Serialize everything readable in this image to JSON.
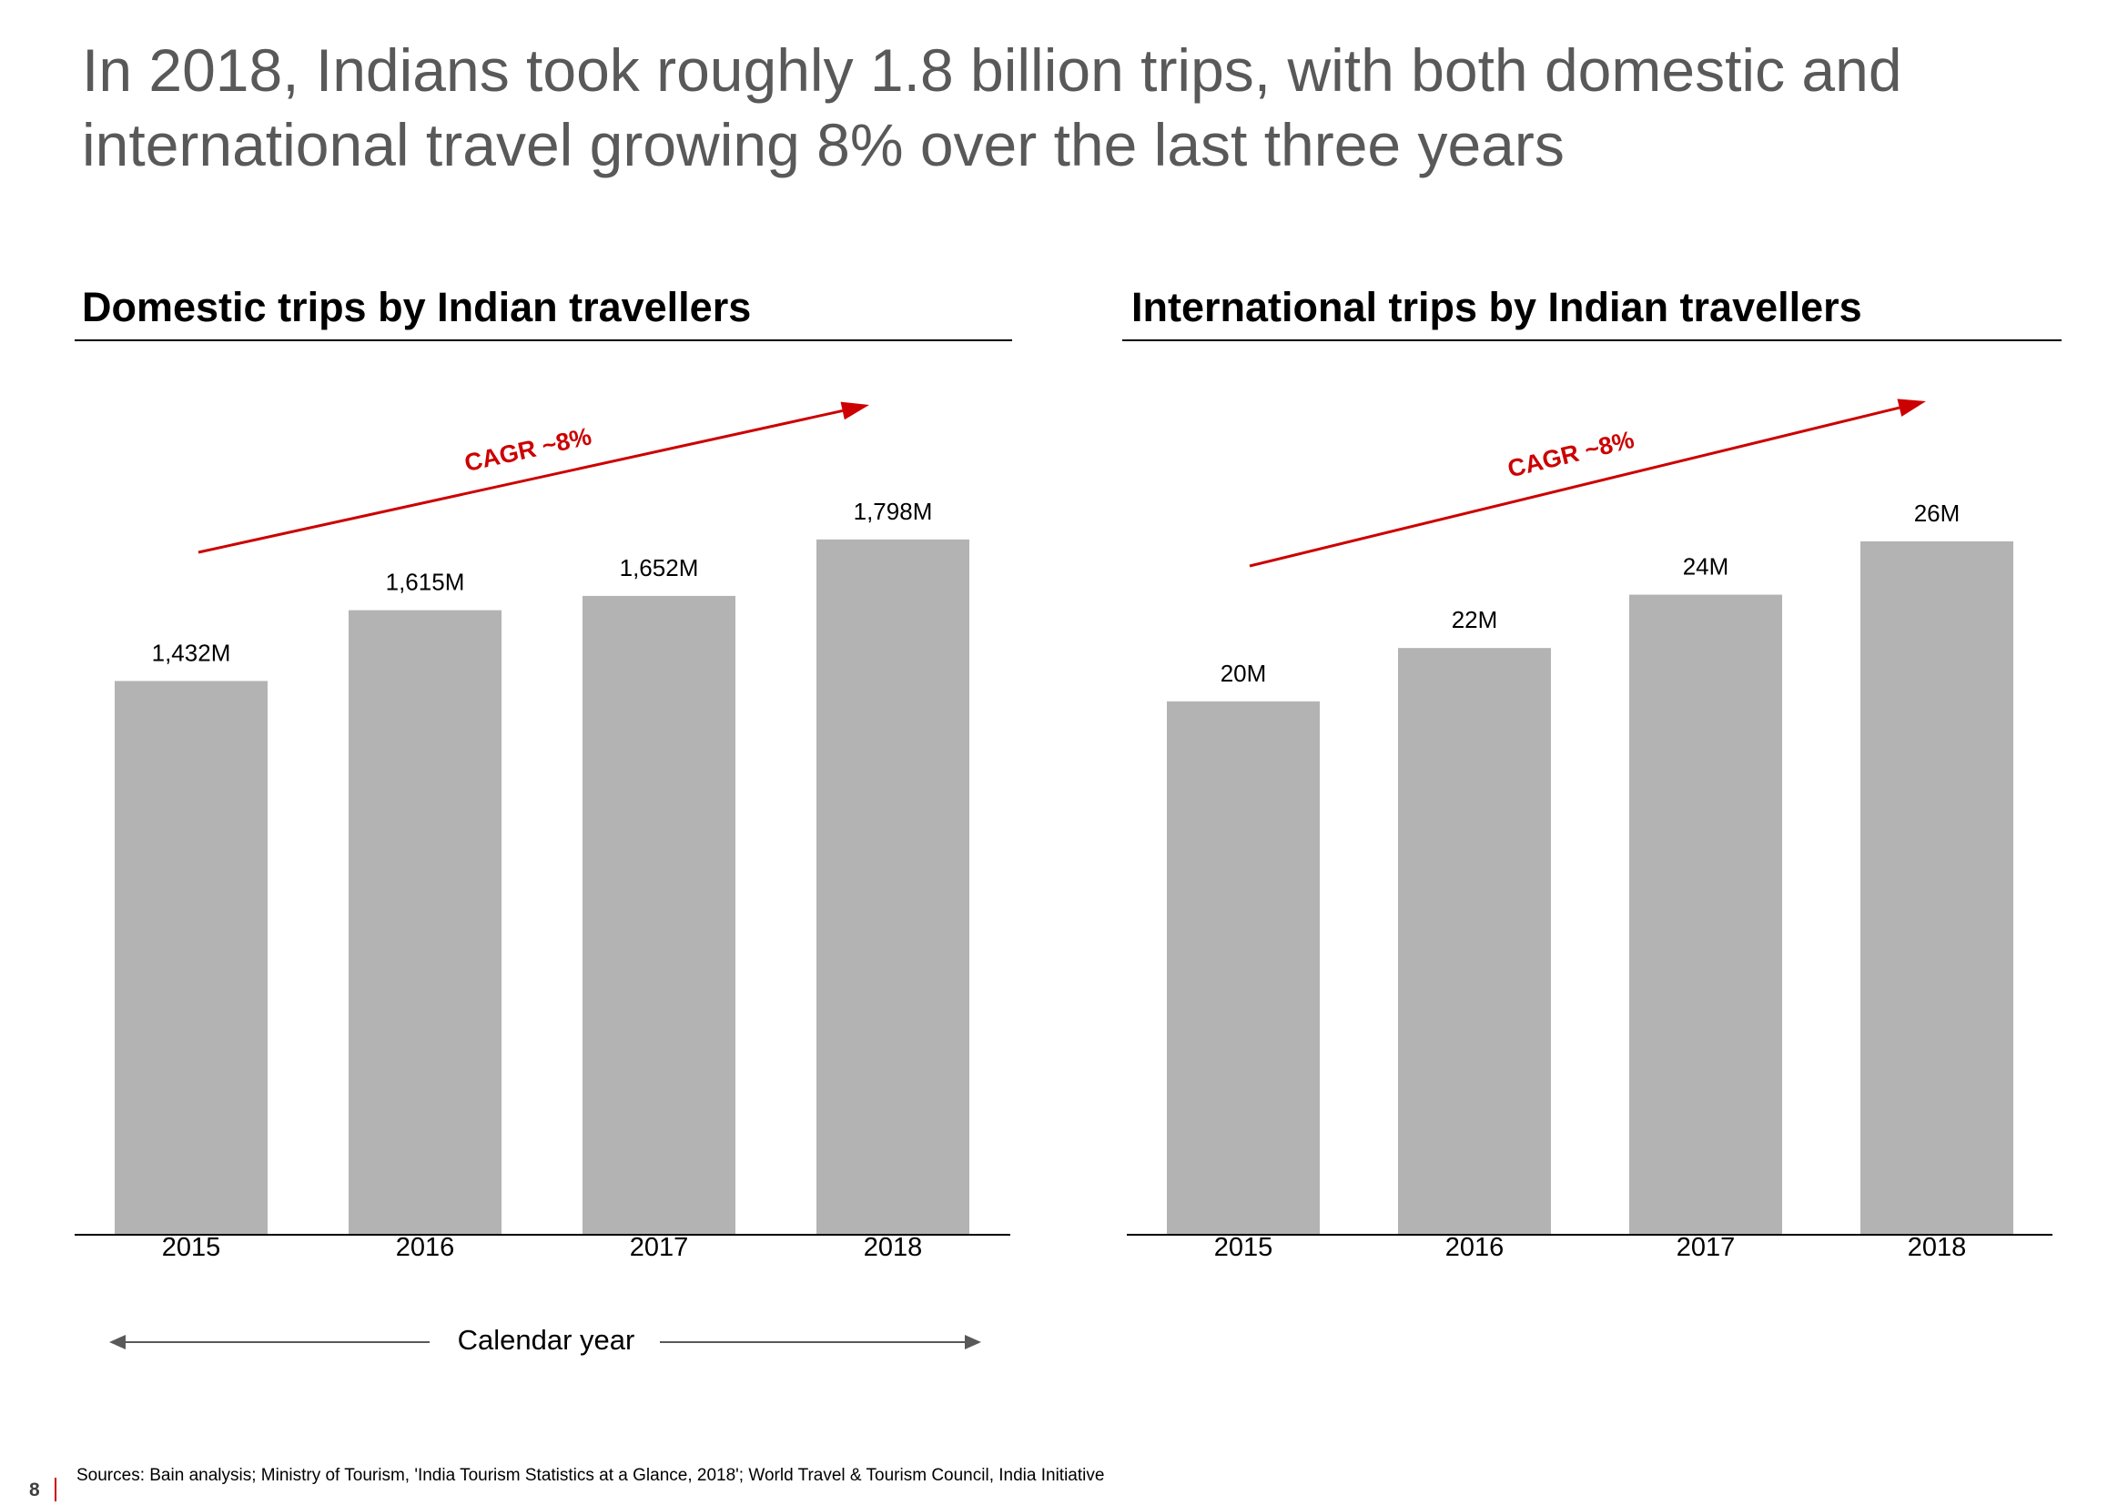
{
  "headline": {
    "line1": "In 2018, Indians took roughly 1.8 billion trips, with both domestic and",
    "line2": "international travel growing 8% over the last three years"
  },
  "colors": {
    "bar": "#b3b3b3",
    "cagr": "#cc0000",
    "axis": "#000000",
    "arrow": "#595959"
  },
  "chart_data": [
    {
      "type": "bar",
      "title": "Domestic trips by Indian travellers",
      "categories": [
        "2015",
        "2016",
        "2017",
        "2018"
      ],
      "values": [
        1432,
        1615,
        1652,
        1798
      ],
      "value_labels": [
        "1,432M",
        "1,615M",
        "1,652M",
        "1,798M"
      ],
      "ylim": [
        0,
        2000
      ],
      "annotation": "CAGR ~8%"
    },
    {
      "type": "bar",
      "title": "International trips by Indian travellers",
      "categories": [
        "2015",
        "2016",
        "2017",
        "2018"
      ],
      "values": [
        20,
        22,
        24,
        26
      ],
      "value_labels": [
        "20M",
        "22M",
        "24M",
        "26M"
      ],
      "ylim": [
        0,
        29
      ],
      "annotation": "CAGR ~8%"
    }
  ],
  "xaxis_caption": "Calendar year",
  "footer": {
    "source": "Sources: Bain analysis; Ministry of Tourism, 'India Tourism Statistics at a Glance, 2018'; World Travel & Tourism Council, India Initiative",
    "page": "8"
  }
}
